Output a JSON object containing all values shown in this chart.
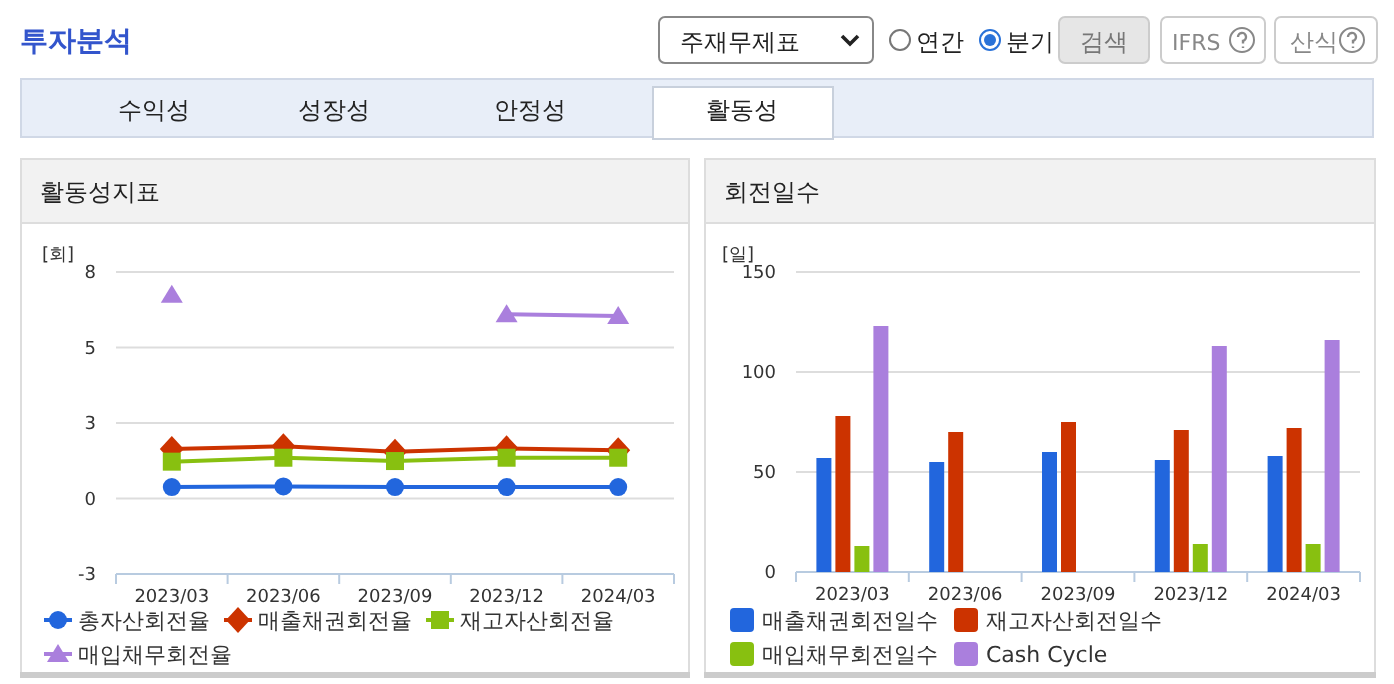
{
  "chart_data": [
    {
      "type": "other",
      "title": "투자분석",
      "annotations": [
        "주재무제표",
        "연간",
        "분기",
        "검색",
        "IFRS",
        "산식",
        "수익성",
        "성장성",
        "안정성",
        "활동성"
      ]
    },
    {
      "type": "line",
      "title": "활동성지표",
      "ylabel": "[회]",
      "categories": [
        "2023/03",
        "2023/06",
        "2023/09",
        "2023/12",
        "2024/03"
      ],
      "ylim": [
        -2.5,
        7.5
      ],
      "yticks": [
        {
          "value": -2.5,
          "label": "-3"
        },
        0,
        {
          "value": 2.5,
          "label": "3"
        },
        5,
        {
          "value": 7.5,
          "label": "8"
        }
      ],
      "grid": "y",
      "legend": "bottom",
      "line_style": "solid",
      "series": [
        {
          "name": "총자산회전율",
          "color": "#2266dd",
          "marker": "circle",
          "values": [
            0.38,
            0.4,
            0.38,
            0.38,
            0.38
          ]
        },
        {
          "name": "매출채권회전율",
          "color": "#cc3300",
          "marker": "diamond",
          "values": [
            1.64,
            1.73,
            1.55,
            1.66,
            1.6
          ]
        },
        {
          "name": "재고자산회전율",
          "color": "#88c010",
          "marker": "square",
          "values": [
            1.22,
            1.35,
            1.24,
            1.35,
            1.35
          ]
        },
        {
          "name": "매입채무회전율",
          "color": "#aa7fdd",
          "marker": "triangle",
          "values": [
            6.75,
            null,
            null,
            6.1,
            6.04
          ]
        }
      ]
    },
    {
      "type": "bar",
      "title": "회전일수",
      "ylabel": "[일]",
      "categories": [
        "2023/03",
        "2023/06",
        "2023/09",
        "2023/12",
        "2024/03"
      ],
      "ylim": [
        0,
        150
      ],
      "yticks": [
        0,
        50,
        100,
        150
      ],
      "grid": "y",
      "legend": "bottom",
      "series": [
        {
          "name": "매출채권회전일수",
          "color": "#2266dd",
          "values": [
            57,
            55,
            60,
            56,
            58
          ]
        },
        {
          "name": "재고자산회전일수",
          "color": "#cc3300",
          "values": [
            78,
            70,
            75,
            71,
            72
          ]
        },
        {
          "name": "매입채무회전일수",
          "color": "#88c010",
          "values": [
            13,
            null,
            null,
            14,
            14
          ]
        },
        {
          "name": "Cash Cycle",
          "color": "#aa7fdd",
          "values": [
            123,
            null,
            null,
            113,
            116
          ]
        }
      ]
    }
  ]
}
